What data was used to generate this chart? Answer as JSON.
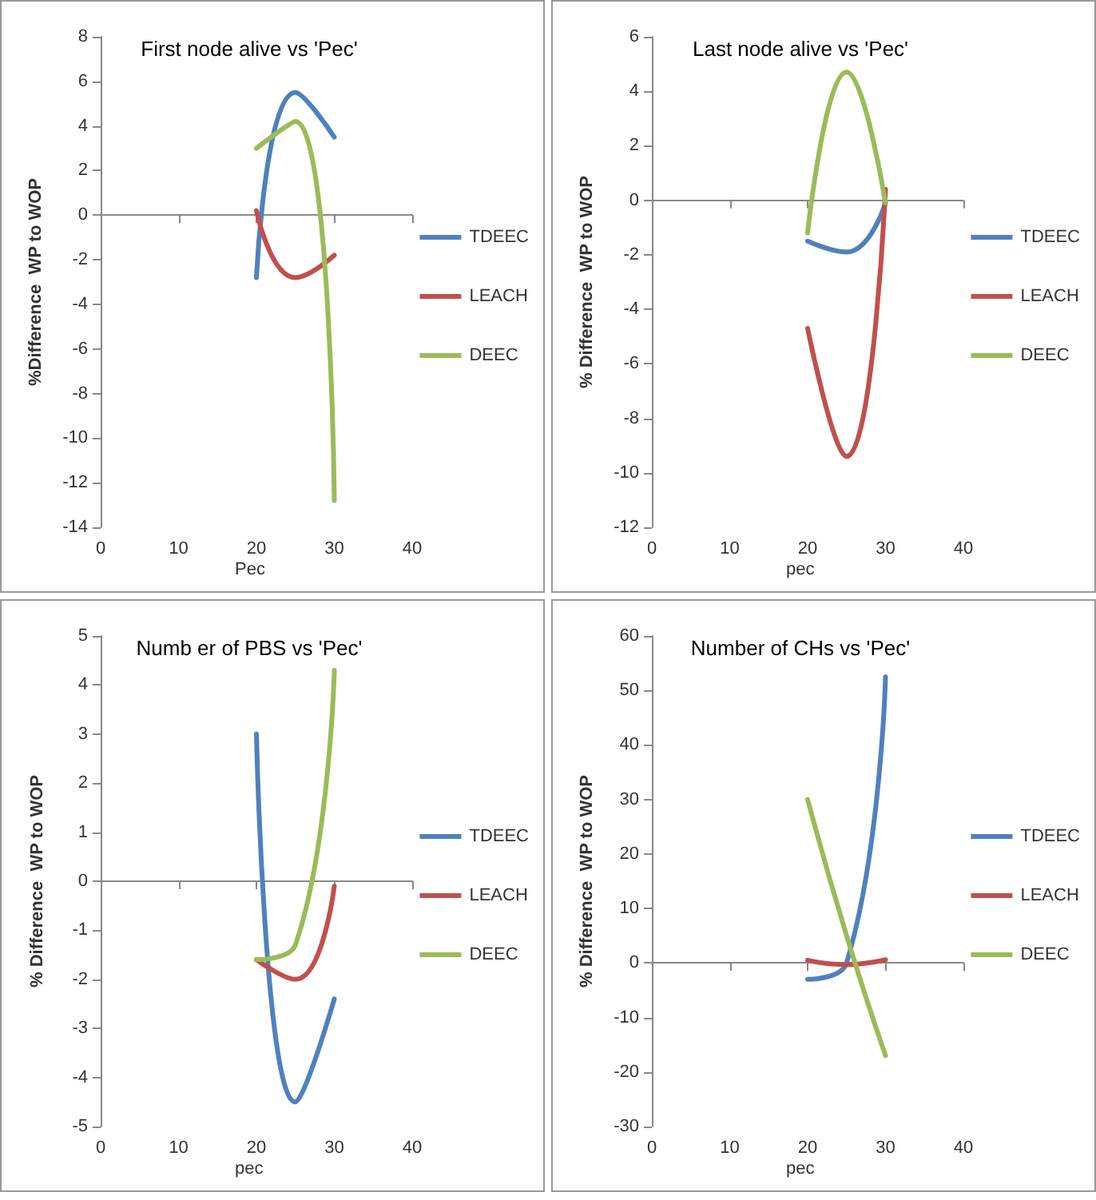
{
  "chart_data": [
    {
      "type": "line",
      "title": "First node alive vs 'Pec'",
      "xlabel": "Pec",
      "ylabel": "%Difference  WP to WOP",
      "x": [
        20,
        25,
        30
      ],
      "xlim": [
        0,
        40
      ],
      "xticks": [
        0,
        10,
        20,
        30,
        40
      ],
      "ylim": [
        -14,
        8
      ],
      "yticks": [
        -14,
        -12,
        -10,
        -8,
        -6,
        -4,
        -2,
        0,
        2,
        4,
        6,
        8
      ],
      "legend": "right",
      "marker": "none",
      "line_style": "solid",
      "series": [
        {
          "name": "TDEEC",
          "color": "#4f81bd",
          "values": [
            -2.8,
            5.5,
            3.5
          ]
        },
        {
          "name": "LEACH",
          "color": "#c0504d",
          "values": [
            0.2,
            -2.8,
            -1.8
          ]
        },
        {
          "name": "DEEC",
          "color": "#9bbb59",
          "values": [
            3,
            4.2,
            -12.8
          ]
        }
      ]
    },
    {
      "type": "line",
      "title": "Last node alive vs 'Pec'",
      "xlabel": "pec",
      "ylabel": "% Difference  WP to WOP",
      "x": [
        20,
        25,
        30
      ],
      "xlim": [
        0,
        40
      ],
      "xticks": [
        0,
        10,
        20,
        30,
        40
      ],
      "ylim": [
        -12,
        6
      ],
      "yticks": [
        -12,
        -10,
        -8,
        -6,
        -4,
        -2,
        0,
        2,
        4,
        6
      ],
      "legend": "right",
      "marker": "none",
      "line_style": "solid",
      "series": [
        {
          "name": "TDEEC",
          "color": "#4f81bd",
          "values": [
            -1.5,
            -1.9,
            -0.1
          ]
        },
        {
          "name": "LEACH",
          "color": "#c0504d",
          "values": [
            -4.7,
            -9.4,
            0.4
          ]
        },
        {
          "name": "DEEC",
          "color": "#9bbb59",
          "values": [
            -1.2,
            4.7,
            -0.1
          ]
        }
      ]
    },
    {
      "type": "line",
      "title": "Numb er of PBS vs 'Pec'",
      "xlabel": "pec",
      "ylabel": "% Difference  WP to WOP",
      "x": [
        20,
        25,
        30
      ],
      "xlim": [
        0,
        40
      ],
      "xticks": [
        0,
        10,
        20,
        30,
        40
      ],
      "ylim": [
        -5,
        5
      ],
      "yticks": [
        -5,
        -4,
        -3,
        -2,
        -1,
        0,
        1,
        2,
        3,
        4,
        5
      ],
      "legend": "right",
      "marker": "none",
      "line_style": "solid",
      "series": [
        {
          "name": "TDEEC",
          "color": "#4f81bd",
          "values": [
            3,
            -4.5,
            -2.4
          ]
        },
        {
          "name": "LEACH",
          "color": "#c0504d",
          "values": [
            -1.6,
            -2,
            -0.1
          ]
        },
        {
          "name": "DEEC",
          "color": "#9bbb59",
          "values": [
            -1.6,
            -1.3,
            4.3
          ]
        }
      ]
    },
    {
      "type": "line",
      "title": "Number of CHs vs 'Pec'",
      "xlabel": "pec",
      "ylabel": "% Difference  WP to WOP",
      "x": [
        20,
        25,
        30
      ],
      "xlim": [
        0,
        40
      ],
      "xticks": [
        0,
        10,
        20,
        30,
        40
      ],
      "ylim": [
        -30,
        60
      ],
      "yticks": [
        -30,
        -20,
        -10,
        0,
        10,
        20,
        30,
        40,
        50,
        60
      ],
      "legend": "right",
      "marker": "none",
      "line_style": "solid",
      "series": [
        {
          "name": "TDEEC",
          "color": "#4f81bd",
          "values": [
            -3,
            0,
            52.5
          ]
        },
        {
          "name": "LEACH",
          "color": "#c0504d",
          "values": [
            0.5,
            -0.3,
            0.6
          ]
        },
        {
          "name": "DEEC",
          "color": "#9bbb59",
          "values": [
            30,
            5,
            -17
          ]
        }
      ]
    }
  ]
}
